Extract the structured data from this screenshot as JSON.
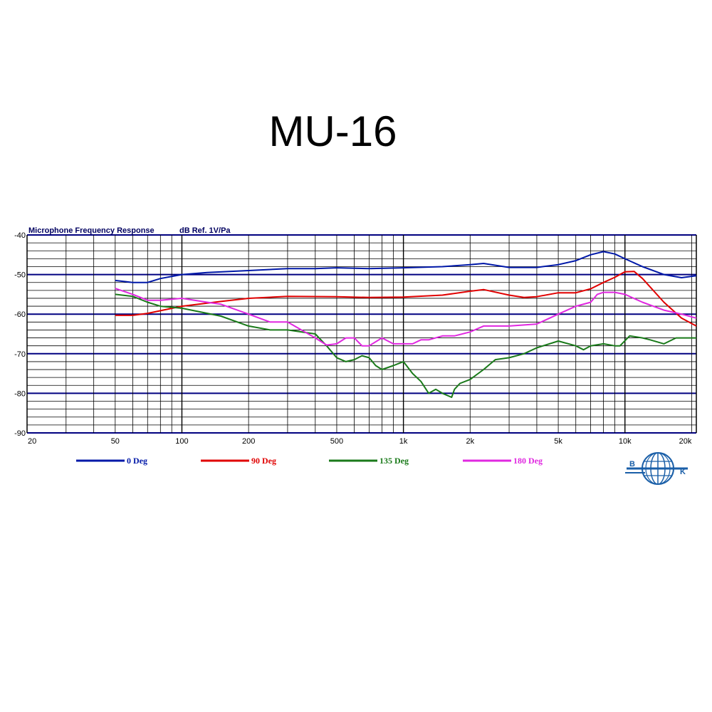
{
  "title": "MU-16",
  "chart_data": {
    "type": "line",
    "title": "Microphone Frequency Response",
    "ylabel": "dB Ref. 1V/Pa",
    "xlabel": "",
    "x_scale": "log",
    "xlim": [
      20,
      21000
    ],
    "ylim": [
      -90,
      -40
    ],
    "grid": true,
    "y_ticks": [
      -40,
      -50,
      -60,
      -70,
      -80,
      -90
    ],
    "x_ticks": [
      {
        "value": 20,
        "label": "20"
      },
      {
        "value": 50,
        "label": "50"
      },
      {
        "value": 100,
        "label": "100"
      },
      {
        "value": 200,
        "label": "200"
      },
      {
        "value": 500,
        "label": "500"
      },
      {
        "value": 1000,
        "label": "1k"
      },
      {
        "value": 2000,
        "label": "2k"
      },
      {
        "value": 5000,
        "label": "5k"
      },
      {
        "value": 10000,
        "label": "10k"
      },
      {
        "value": 20000,
        "label": "20k"
      }
    ],
    "legend_position": "bottom",
    "series": [
      {
        "name": "0 Deg",
        "color": "#0018a8",
        "x": [
          50,
          60,
          70,
          80,
          100,
          130,
          200,
          300,
          400,
          500,
          700,
          1000,
          1500,
          2000,
          2300,
          3000,
          4000,
          5000,
          6000,
          7000,
          8000,
          9000,
          10000,
          12000,
          15000,
          18000,
          21000
        ],
        "y": [
          -51.5,
          -52,
          -52,
          -51,
          -50,
          -49.5,
          -49,
          -48.5,
          -48.5,
          -48.3,
          -48.5,
          -48.3,
          -48,
          -47.5,
          -47.2,
          -48.2,
          -48.2,
          -47.5,
          -46.5,
          -45,
          -44.2,
          -44.8,
          -46,
          -48,
          -50,
          -50.8,
          -50.3
        ]
      },
      {
        "name": "90 Deg",
        "color": "#e00000",
        "x": [
          50,
          60,
          70,
          100,
          150,
          200,
          300,
          500,
          700,
          1000,
          1500,
          2000,
          2300,
          3000,
          3500,
          4000,
          5000,
          6000,
          7000,
          8000,
          9000,
          10000,
          11000,
          12000,
          15000,
          18000,
          21000
        ],
        "y": [
          -60.3,
          -60.3,
          -59.8,
          -58,
          -56.8,
          -56,
          -55.5,
          -55.6,
          -55.8,
          -55.7,
          -55.2,
          -54.2,
          -53.8,
          -55.2,
          -55.8,
          -55.6,
          -54.6,
          -54.6,
          -53.6,
          -52,
          -50.7,
          -49.3,
          -49.2,
          -51,
          -57,
          -61,
          -63
        ]
      },
      {
        "name": "135 Deg",
        "color": "#1a7a1a",
        "x": [
          50,
          60,
          70,
          80,
          100,
          150,
          200,
          250,
          300,
          400,
          450,
          500,
          550,
          600,
          650,
          700,
          750,
          800,
          900,
          1000,
          1100,
          1200,
          1300,
          1400,
          1500,
          1650,
          1700,
          1800,
          2000,
          2300,
          2600,
          3000,
          3500,
          4000,
          5000,
          6000,
          6500,
          7000,
          8000,
          9000,
          9500,
          10500,
          12000,
          13000,
          15000,
          17000,
          21000
        ],
        "y": [
          -55,
          -55.5,
          -57,
          -58,
          -58.5,
          -60.5,
          -63,
          -64,
          -64,
          -65,
          -68,
          -71,
          -72,
          -71.5,
          -70.5,
          -71,
          -73,
          -74,
          -73,
          -72,
          -75,
          -77,
          -80,
          -79,
          -80,
          -81,
          -79,
          -77.5,
          -76.5,
          -74,
          -71.5,
          -71,
          -70,
          -68.5,
          -66.8,
          -68,
          -69,
          -68,
          -67.5,
          -68,
          -68,
          -65.5,
          -66,
          -66.5,
          -67.5,
          -66,
          -66
        ]
      },
      {
        "name": "180 Deg",
        "color": "#e028e0",
        "x": [
          50,
          60,
          70,
          80,
          100,
          130,
          150,
          200,
          250,
          300,
          400,
          450,
          500,
          550,
          600,
          650,
          700,
          800,
          900,
          1000,
          1100,
          1200,
          1300,
          1500,
          1700,
          2000,
          2300,
          3000,
          4000,
          5000,
          6000,
          7000,
          7500,
          8000,
          9000,
          10000,
          12000,
          15000,
          18000,
          21000
        ],
        "y": [
          -53.5,
          -55,
          -56.5,
          -56.5,
          -56,
          -57,
          -57.5,
          -60,
          -62,
          -62,
          -66,
          -67.8,
          -67.5,
          -66,
          -66,
          -68,
          -68,
          -66,
          -67.5,
          -67.5,
          -67.5,
          -66.5,
          -66.5,
          -65.5,
          -65.5,
          -64.5,
          -63,
          -63,
          -62.5,
          -60,
          -58,
          -57,
          -55,
          -54.5,
          -54.5,
          -55,
          -57,
          -59,
          -60,
          -61
        ]
      }
    ]
  }
}
